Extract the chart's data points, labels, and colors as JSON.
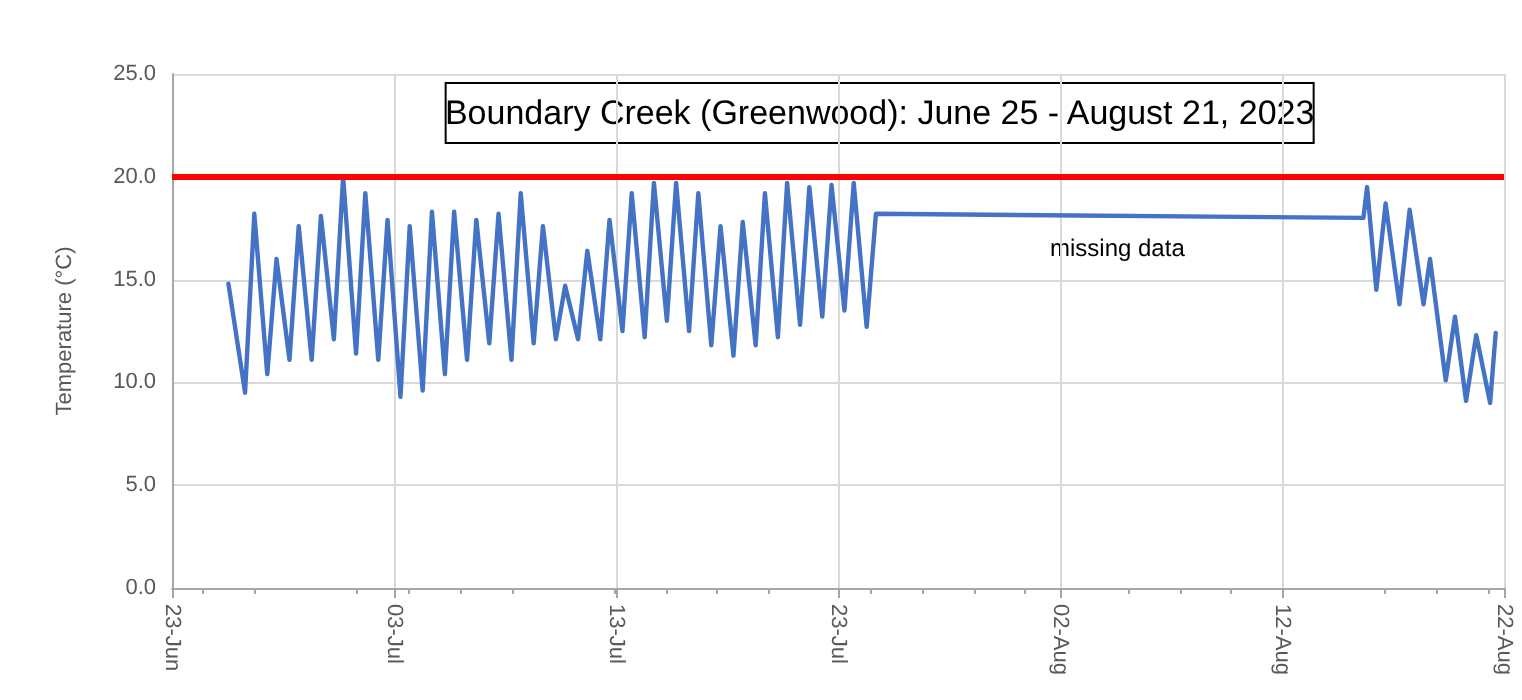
{
  "chart_data": {
    "type": "line",
    "title": "Boundary Creek (Greenwood): June 25 - August 21, 2023",
    "ylabel": "Temperature (°C)",
    "annotations": [
      "missing data"
    ],
    "x": [
      "2023-06-25T13:00",
      "2023-06-26T07:00",
      "2023-06-26T17:00",
      "2023-06-27T07:00",
      "2023-06-27T17:00",
      "2023-06-28T07:00",
      "2023-06-28T17:00",
      "2023-06-29T07:00",
      "2023-06-29T17:00",
      "2023-06-30T07:00",
      "2023-06-30T17:00",
      "2023-07-01T07:00",
      "2023-07-01T17:00",
      "2023-07-02T07:00",
      "2023-07-02T17:00",
      "2023-07-03T07:00",
      "2023-07-03T17:00",
      "2023-07-04T07:00",
      "2023-07-04T17:00",
      "2023-07-05T07:00",
      "2023-07-05T17:00",
      "2023-07-06T07:00",
      "2023-07-06T17:00",
      "2023-07-07T07:00",
      "2023-07-07T17:00",
      "2023-07-08T07:00",
      "2023-07-08T17:00",
      "2023-07-09T07:00",
      "2023-07-09T17:00",
      "2023-07-10T07:00",
      "2023-07-10T17:00",
      "2023-07-11T07:00",
      "2023-07-11T17:00",
      "2023-07-12T07:00",
      "2023-07-12T17:00",
      "2023-07-13T07:00",
      "2023-07-13T17:00",
      "2023-07-14T07:00",
      "2023-07-14T17:00",
      "2023-07-15T07:00",
      "2023-07-15T17:00",
      "2023-07-16T07:00",
      "2023-07-16T17:00",
      "2023-07-17T07:00",
      "2023-07-17T17:00",
      "2023-07-18T07:00",
      "2023-07-18T17:00",
      "2023-07-19T07:00",
      "2023-07-19T17:00",
      "2023-07-20T07:00",
      "2023-07-20T17:00",
      "2023-07-21T07:00",
      "2023-07-21T17:00",
      "2023-07-22T07:00",
      "2023-07-22T17:00",
      "2023-07-23T07:00",
      "2023-07-23T17:00",
      "2023-07-24T07:00",
      "2023-07-24T17:00",
      "2023-08-15T16:00",
      "2023-08-15T20:00",
      "2023-08-16T06:00",
      "2023-08-16T16:00",
      "2023-08-17T07:00",
      "2023-08-17T18:00",
      "2023-08-18T09:00",
      "2023-08-18T16:00",
      "2023-08-19T09:00",
      "2023-08-19T19:00",
      "2023-08-20T07:00",
      "2023-08-20T18:00",
      "2023-08-21T09:00",
      "2023-08-21T15:00"
    ],
    "series": [
      {
        "color": "#4472c4",
        "values": [
          14.8,
          9.5,
          18.2,
          10.4,
          16.0,
          11.1,
          17.6,
          11.1,
          18.1,
          12.1,
          20.0,
          11.4,
          19.2,
          11.1,
          17.9,
          9.3,
          17.6,
          9.6,
          18.3,
          10.4,
          18.3,
          11.1,
          17.9,
          11.9,
          18.2,
          11.1,
          19.2,
          11.9,
          17.6,
          12.1,
          14.7,
          12.1,
          16.4,
          12.1,
          17.9,
          12.5,
          19.2,
          12.2,
          19.7,
          13.0,
          19.7,
          12.5,
          19.2,
          11.8,
          17.6,
          11.3,
          17.8,
          11.8,
          19.2,
          12.2,
          19.7,
          12.8,
          19.5,
          13.2,
          19.6,
          13.5,
          19.7,
          12.7,
          18.2,
          18.0,
          19.5,
          14.5,
          18.7,
          13.8,
          18.4,
          13.8,
          16.0,
          10.1,
          13.2,
          9.1,
          12.3,
          9.0,
          12.4
        ]
      }
    ],
    "xlim": [
      "2023-06-23",
      "2023-08-22"
    ],
    "xticks": [
      {
        "value": "2023-06-23",
        "label": "23-Jun"
      },
      {
        "value": "2023-07-03",
        "label": "03-Jul"
      },
      {
        "value": "2023-07-13",
        "label": "13-Jul"
      },
      {
        "value": "2023-07-23",
        "label": "23-Jul"
      },
      {
        "value": "2023-08-02",
        "label": "02-Aug"
      },
      {
        "value": "2023-08-12",
        "label": "12-Aug"
      },
      {
        "value": "2023-08-22",
        "label": "22-Aug"
      }
    ],
    "ylim": [
      0,
      25
    ],
    "yticks": [
      {
        "value": 0,
        "label": "0.0"
      },
      {
        "value": 5,
        "label": "5.0"
      },
      {
        "value": 10,
        "label": "10.0"
      },
      {
        "value": 15,
        "label": "15.0"
      },
      {
        "value": 20,
        "label": "20.0"
      },
      {
        "value": 25,
        "label": "25.0"
      }
    ],
    "ref_lines": [
      {
        "axis": "y",
        "value": 20,
        "color": "#ff0000",
        "line_style": "solid"
      }
    ],
    "grid": true,
    "marker": "none",
    "line_style": "solid"
  }
}
